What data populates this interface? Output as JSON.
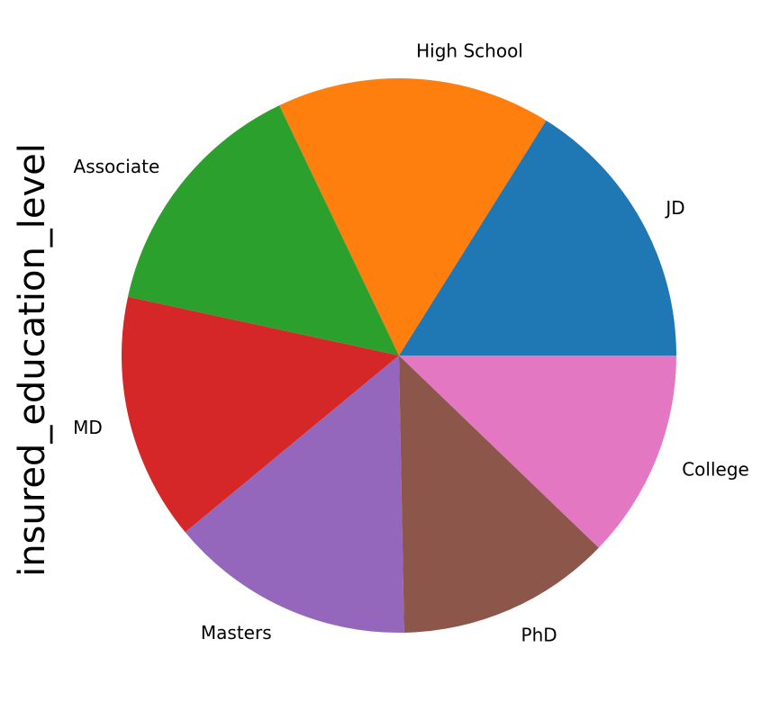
{
  "chart_data": {
    "type": "pie",
    "ylabel": "insured_education_level",
    "categories": [
      "JD",
      "High School",
      "Associate",
      "MD",
      "Masters",
      "PhD",
      "College"
    ],
    "values": [
      161,
      160,
      145,
      144,
      143,
      125,
      122
    ],
    "colors": [
      "#1f77b4",
      "#ff7f0e",
      "#2ca02c",
      "#d62728",
      "#9467bd",
      "#8c564b",
      "#e377c2"
    ],
    "start_angle_deg": 0,
    "direction": "counterclockwise"
  }
}
